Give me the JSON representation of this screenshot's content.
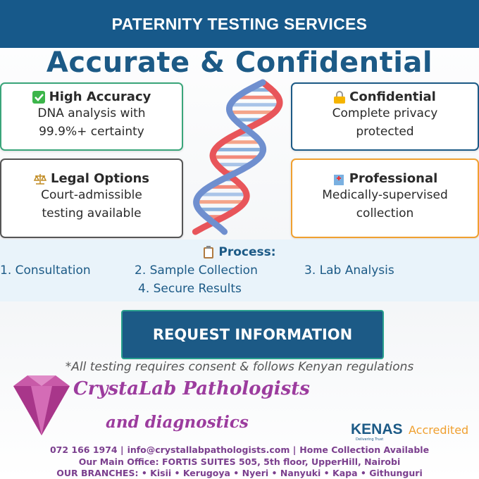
{
  "header": {
    "title": "PATERNITY TESTING SERVICES"
  },
  "headline": "Accurate & Confidential",
  "cards": [
    {
      "title": "High Accuracy",
      "lines": [
        "DNA analysis with",
        "99.9%+ certainty"
      ]
    },
    {
      "title": "Confidential",
      "lines": [
        "Complete privacy",
        "protected"
      ]
    },
    {
      "title": "Legal Options",
      "lines": [
        "Court-admissible",
        "testing available"
      ]
    },
    {
      "title": "Professional",
      "lines": [
        "Medically-supervised",
        "collection"
      ]
    }
  ],
  "process": {
    "title": "Process:",
    "steps": [
      "1. Consultation",
      "2. Sample Collection",
      "3. Lab Analysis",
      "4. Secure Results"
    ]
  },
  "button": "REQUEST INFORMATION",
  "note": "*All testing requires consent & follows Kenyan regulations",
  "logo": {
    "name": "CrystaLab Pathologists",
    "tagline": "and diagnostics"
  },
  "accreditation": {
    "brand": "KENAS",
    "slogan": "Delivering Trust",
    "label": "Accredited"
  },
  "footer": {
    "phone": "072 166 1974 |",
    "email": "info@crystallabpathologists.com |",
    "service": "Home Collection Available",
    "office": "Our Main Office: FORTIS SUITES 505, 5th floor, UpperHill, Nairobi",
    "branches": "OUR BRANCHES: • Kisii • Kerugoya • Nyeri • Nanyuki • Kapa • Githunguri"
  }
}
